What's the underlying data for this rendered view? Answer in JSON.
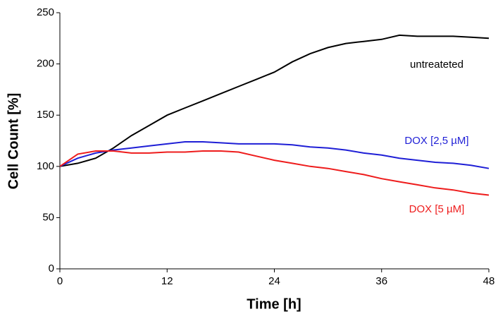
{
  "chart_data": {
    "type": "line",
    "x_label": "Time [h]",
    "y_label": "Cell Count [%]",
    "x": [
      0,
      2,
      4,
      6,
      8,
      10,
      12,
      14,
      16,
      18,
      20,
      22,
      24,
      26,
      28,
      30,
      32,
      34,
      36,
      38,
      40,
      42,
      44,
      46,
      48
    ],
    "series": [
      {
        "name": "untreateted",
        "color": "#000000",
        "values": [
          100,
          103,
          108,
          118,
          130,
          140,
          150,
          157,
          164,
          171,
          178,
          185,
          192,
          202,
          210,
          216,
          220,
          222,
          224,
          228,
          227,
          227,
          227,
          226,
          225
        ]
      },
      {
        "name": "DOX [2,5 µM]",
        "color": "#1f1fd6",
        "values": [
          100,
          108,
          113,
          116,
          118,
          120,
          122,
          124,
          124,
          123,
          122,
          122,
          122,
          121,
          119,
          118,
          116,
          113,
          111,
          108,
          106,
          104,
          103,
          101,
          98
        ]
      },
      {
        "name": "DOX [5 µM]",
        "color": "#ee1c1c",
        "values": [
          100,
          112,
          115,
          115,
          113,
          113,
          114,
          114,
          115,
          115,
          114,
          110,
          106,
          103,
          100,
          98,
          95,
          92,
          88,
          85,
          82,
          79,
          77,
          74,
          72
        ]
      }
    ],
    "xlim": [
      0,
      48
    ],
    "xticks": [
      0,
      12,
      24,
      36,
      48
    ],
    "ylim": [
      0,
      250
    ],
    "yticks": [
      0,
      50,
      100,
      150,
      200,
      250
    ],
    "grid": false
  }
}
